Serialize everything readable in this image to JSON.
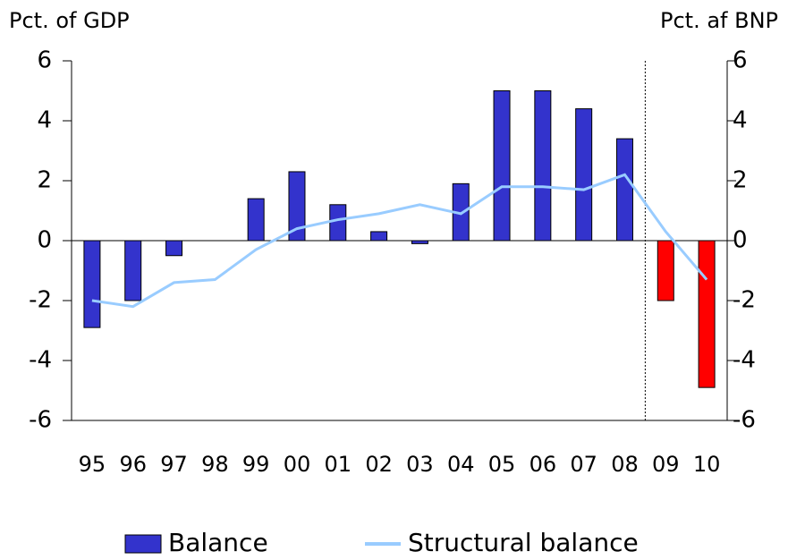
{
  "chart_data": {
    "type": "bar",
    "ylabel": "Pct. of GDP",
    "y2label": "Pct. af BNP",
    "categories": [
      "95",
      "96",
      "97",
      "98",
      "99",
      "00",
      "01",
      "02",
      "03",
      "04",
      "05",
      "06",
      "07",
      "08",
      "09",
      "10"
    ],
    "series": [
      {
        "name": "Balance",
        "type": "bar",
        "color": "#3333cc",
        "colors": [
          "#3333cc",
          "#3333cc",
          "#3333cc",
          "#3333cc",
          "#3333cc",
          "#3333cc",
          "#3333cc",
          "#3333cc",
          "#3333cc",
          "#3333cc",
          "#3333cc",
          "#3333cc",
          "#3333cc",
          "#3333cc",
          "#ff0000",
          "#ff0000"
        ],
        "values": [
          -2.9,
          -2.0,
          -0.5,
          0,
          1.4,
          2.3,
          1.2,
          0.3,
          -0.1,
          1.9,
          5.0,
          5.0,
          4.4,
          3.4,
          -2.0,
          -4.9
        ]
      },
      {
        "name": "Structural balance",
        "type": "line",
        "color": "#99ccff",
        "values": [
          -2.0,
          -2.2,
          -1.4,
          -1.3,
          -0.3,
          0.4,
          0.7,
          0.9,
          1.2,
          0.9,
          1.8,
          1.8,
          1.7,
          2.2,
          0.3,
          -1.3
        ]
      }
    ],
    "ylim": [
      -6,
      6
    ],
    "yticks": [
      -6,
      -4,
      -2,
      0,
      2,
      4,
      6
    ],
    "y2lim": [
      -6,
      6
    ],
    "y2ticks": [
      -6,
      -4,
      -2,
      0,
      2,
      4,
      6
    ],
    "legend": "bottom"
  }
}
